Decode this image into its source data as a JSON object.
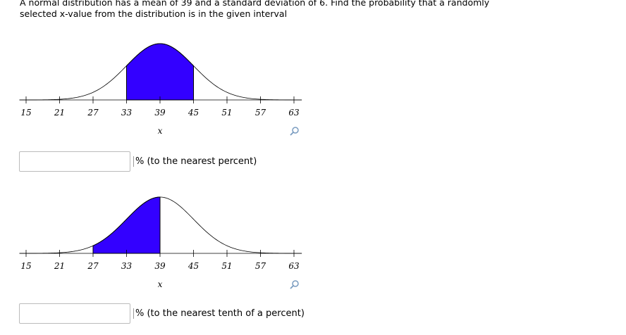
{
  "question": {
    "line1": "A normal distribution has a mean of 39 and a standard deviation of 6. Find the probability that a randomly",
    "line2": "selected x-value from the distribution is in the given interval"
  },
  "chart_data": [
    {
      "type": "normal",
      "mean": 39,
      "sd": 6,
      "xlim": [
        15,
        63
      ],
      "xticks": [
        15,
        21,
        27,
        33,
        39,
        45,
        51,
        57,
        63
      ],
      "xlabel": "x",
      "shade": [
        33,
        45
      ],
      "color": "#3300ff"
    },
    {
      "type": "normal",
      "mean": 39,
      "sd": 6,
      "xlim": [
        15,
        63
      ],
      "xticks": [
        15,
        21,
        27,
        33,
        39,
        45,
        51,
        57,
        63
      ],
      "xlabel": "x",
      "shade": [
        27,
        39
      ],
      "color": "#3300ff"
    }
  ],
  "answers": [
    {
      "suffix": "% (to the nearest percent)"
    },
    {
      "suffix": "% (to the nearest tenth of a percent)"
    }
  ]
}
